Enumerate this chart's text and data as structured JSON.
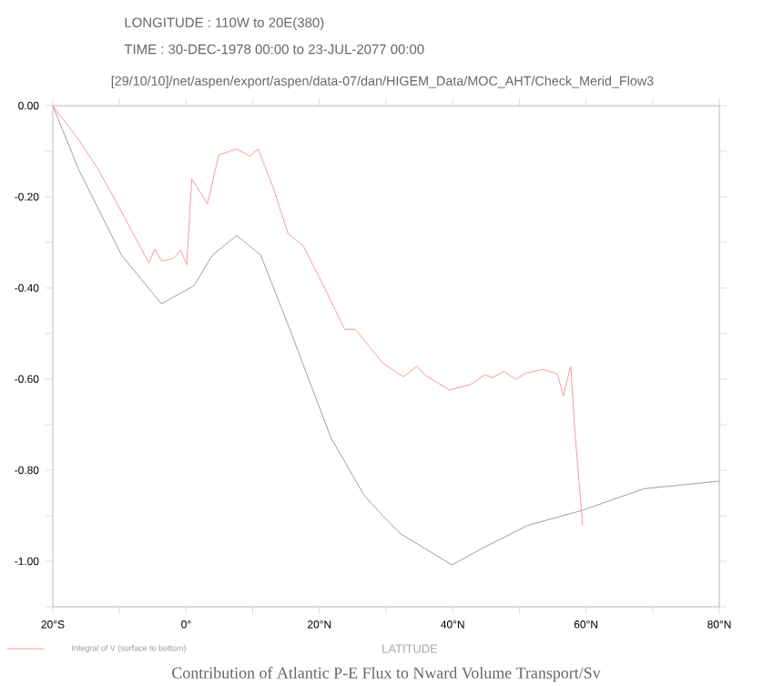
{
  "chart_data": {
    "type": "line",
    "title": "Contribution of Atlantic P-E Flux to Nward Volume Transport/Sv",
    "xlabel": "LATITUDE",
    "annotations": [
      "LONGITUDE : 110W to 20E(380)",
      "TIME : 30-DEC-1978 00:00 to 23-JUL-2077 00:00",
      "[29/10/10]/net/aspen/export/aspen/data-07/dan/HIGEM_Data/MOC_AHT/Check_Merid_Flow3"
    ],
    "series": [
      {
        "color": "#a0a0a0",
        "x": [
          -20,
          -16.1,
          -9.7,
          -3.7,
          1.2,
          3.95,
          7.6,
          11.2,
          15.8,
          21.7,
          26.7,
          29.5,
          32.2,
          39.9,
          44.9,
          51.3,
          59.5,
          68.6,
          80
        ],
        "values": [
          0,
          -0.141,
          -0.328,
          -0.435,
          -0.395,
          -0.328,
          -0.285,
          -0.328,
          -0.5,
          -0.728,
          -0.855,
          -0.9,
          -0.94,
          -1.008,
          -0.968,
          -0.921,
          -0.888,
          -0.841,
          -0.824
        ]
      },
      {
        "name": "Integral of V (surface to bottom)",
        "color": "#ff9999",
        "x": [
          -20,
          -16.1,
          -13.4,
          -10.6,
          -8.4,
          -5.6,
          -4.7,
          -3.7,
          -1.9,
          -0.8,
          0.1,
          0.85,
          3.2,
          4.9,
          7.6,
          9.6,
          10.8,
          13.1,
          15.3,
          17.6,
          20.8,
          23.8,
          25.4,
          29.5,
          32.6,
          34.7,
          35.8,
          39.5,
          42.7,
          44.8,
          46.0,
          47.7,
          49.5,
          50.9,
          53.6,
          55.7,
          56.6,
          57.7,
          58.4,
          59.5
        ],
        "values": [
          0,
          -0.075,
          -0.135,
          -0.208,
          -0.268,
          -0.345,
          -0.315,
          -0.341,
          -0.335,
          -0.317,
          -0.349,
          -0.161,
          -0.215,
          -0.108,
          -0.095,
          -0.111,
          -0.095,
          -0.181,
          -0.281,
          -0.308,
          -0.401,
          -0.491,
          -0.491,
          -0.565,
          -0.595,
          -0.572,
          -0.591,
          -0.624,
          -0.612,
          -0.591,
          -0.597,
          -0.583,
          -0.601,
          -0.587,
          -0.579,
          -0.589,
          -0.637,
          -0.572,
          -0.728,
          -0.921
        ]
      }
    ],
    "xlim": [
      -20,
      80
    ],
    "ylim": [
      -1.1,
      0
    ],
    "xticks": [
      {
        "value": -20,
        "label": "20°S"
      },
      {
        "value": -10,
        "label": null
      },
      {
        "value": 0,
        "label": "0°"
      },
      {
        "value": 10,
        "label": null
      },
      {
        "value": 20,
        "label": "20°N"
      },
      {
        "value": 30,
        "label": null
      },
      {
        "value": 40,
        "label": "40°N"
      },
      {
        "value": 50,
        "label": null
      },
      {
        "value": 60,
        "label": "60°N"
      },
      {
        "value": 70,
        "label": null
      },
      {
        "value": 80,
        "label": "80°N"
      }
    ],
    "yticks": [
      {
        "value": 0,
        "label": "0.00"
      },
      {
        "value": -0.1,
        "label": null
      },
      {
        "value": -0.2,
        "label": "-0.20"
      },
      {
        "value": -0.3,
        "label": null
      },
      {
        "value": -0.4,
        "label": "-0.40"
      },
      {
        "value": -0.5,
        "label": null
      },
      {
        "value": -0.6,
        "label": "-0.60"
      },
      {
        "value": -0.7,
        "label": null
      },
      {
        "value": -0.8,
        "label": "-0.80"
      },
      {
        "value": -0.9,
        "label": null
      },
      {
        "value": -1.0,
        "label": "-1.00"
      },
      {
        "value": -1.1,
        "label": null
      }
    ],
    "legend": "bottom left"
  }
}
